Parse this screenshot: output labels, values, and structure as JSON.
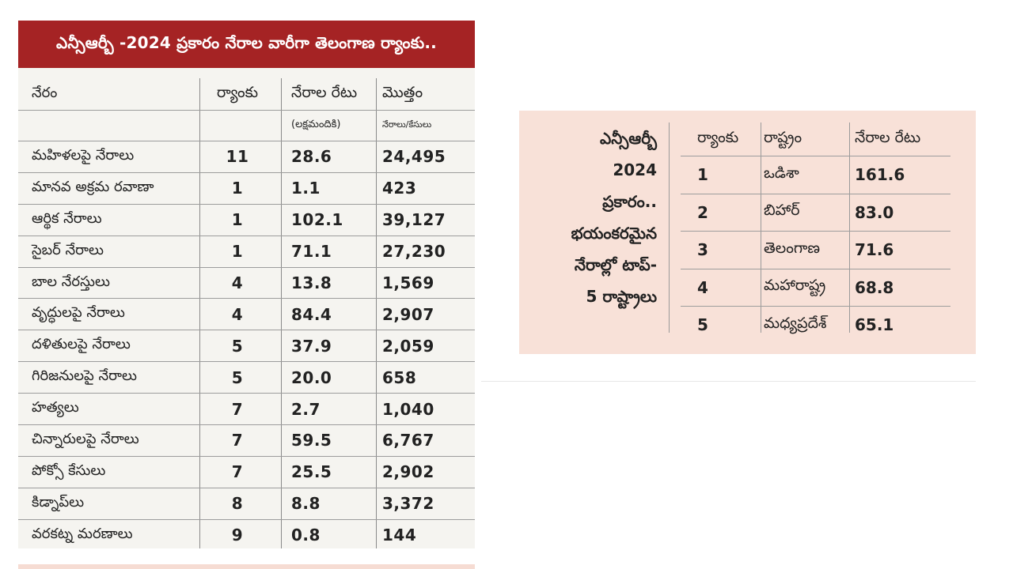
{
  "left_table": {
    "title": "ఎన్సీఆర్బీ -2024 ప్రకారం నేరాల వారీగా తెలంగాణ ర్యాంకు..",
    "headers": {
      "crime": "నేరం",
      "rank": "ర్యాంకు",
      "rate": "నేరాల రేటు",
      "total": "మొత్తం"
    },
    "subheaders": {
      "rate": "(లక్షమందికి)",
      "total": "నేరాలు/కేసులు"
    },
    "rows": [
      {
        "crime": "మహిళలపై నేరాలు",
        "rank": "11",
        "rate": "28.6",
        "total": "24,495"
      },
      {
        "crime": "మానవ అక్రమ రవాణా",
        "rank": "1",
        "rate": "1.1",
        "total": "423"
      },
      {
        "crime": "ఆర్థిక నేరాలు",
        "rank": "1",
        "rate": "102.1",
        "total": "39,127"
      },
      {
        "crime": "సైబర్ నేరాలు",
        "rank": "1",
        "rate": "71.1",
        "total": "27,230"
      },
      {
        "crime": "బాల నేరస్తులు",
        "rank": "4",
        "rate": "13.8",
        "total": "1,569"
      },
      {
        "crime": "వృద్ధులపై నేరాలు",
        "rank": "4",
        "rate": "84.4",
        "total": "2,907"
      },
      {
        "crime": "దళితులపై నేరాలు",
        "rank": "5",
        "rate": "37.9",
        "total": "2,059"
      },
      {
        "crime": "గిరిజనులపై నేరాలు",
        "rank": "5",
        "rate": "20.0",
        "total": "658"
      },
      {
        "crime": "హత్యలు",
        "rank": "7",
        "rate": "2.7",
        "total": "1,040"
      },
      {
        "crime": "చిన్నారులపై నేరాలు",
        "rank": "7",
        "rate": "59.5",
        "total": "6,767"
      },
      {
        "crime": "పోక్సో కేసులు",
        "rank": "7",
        "rate": "25.5",
        "total": "2,902"
      },
      {
        "crime": "కిడ్నాప్‌లు",
        "rank": "8",
        "rate": "8.8",
        "total": "3,372"
      },
      {
        "crime": "వరకట్న మరణాలు",
        "rank": "9",
        "rate": "0.8",
        "total": "144"
      }
    ]
  },
  "right_table": {
    "intro_lines": [
      "ఎన్సీఆర్బీ",
      "2024",
      "ప్రకారం..",
      "భయంకరమైన",
      "నేరాల్లో టాప్-",
      "5 రాష్ట్రాలు"
    ],
    "headers": {
      "rank": "ర్యాంకు",
      "state": "రాష్ట్రం",
      "rate": "నేరాల రేటు"
    },
    "rows": [
      {
        "rank": "1",
        "state": "ఒడిశా",
        "rate": "161.6"
      },
      {
        "rank": "2",
        "state": "బిహార్",
        "rate": "83.0"
      },
      {
        "rank": "3",
        "state": "తెలంగాణ",
        "rate": "71.6"
      },
      {
        "rank": "4",
        "state": "మహారాష్ట్ర",
        "rate": "68.8"
      },
      {
        "rank": "5",
        "state": "మధ్యప్రదేశ్",
        "rate": "65.1"
      }
    ]
  },
  "colors": {
    "title_bar": "#a52324",
    "left_panel_bg": "#f5f4f0",
    "right_panel_bg": "#f8e1d8"
  }
}
